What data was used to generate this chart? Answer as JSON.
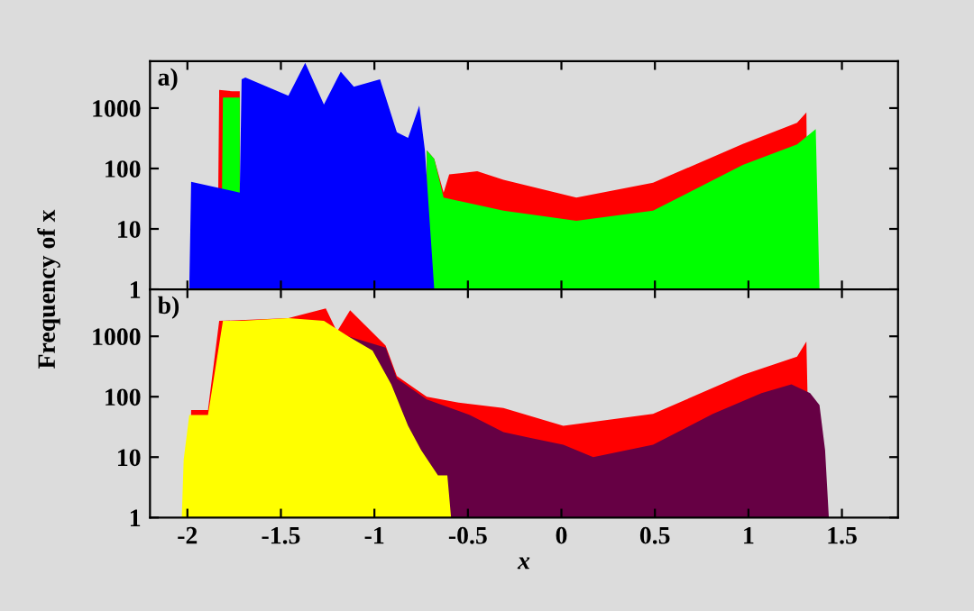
{
  "chart_data": [
    {
      "type": "area",
      "title": "a)",
      "ylabel": "Frequency of x",
      "log": "y",
      "xlim": [
        -2.2,
        1.8
      ],
      "ylim": [
        1,
        6000
      ],
      "xticks": [
        -2,
        -1.5,
        -1,
        -0.5,
        0,
        0.5,
        1,
        1.5
      ],
      "yticks": [
        1,
        10,
        100,
        1000
      ],
      "tick_labels": "y",
      "grid": false,
      "legend": false,
      "series": [
        {
          "color": "#ff0000",
          "x": [
            -1.84,
            -1.83,
            -1.76,
            -1.72,
            -1.2,
            -0.72,
            -0.68,
            -0.63,
            -0.6,
            -0.45,
            -0.31,
            0.08,
            0.49,
            0.97,
            1.26,
            1.31,
            1.32
          ],
          "values": [
            1,
            2000,
            1900,
            1900,
            null,
            200,
            145,
            40,
            80,
            90,
            65,
            33,
            58,
            255,
            570,
            850,
            1
          ]
        },
        {
          "color": "#00ff00",
          "x": [
            -1.82,
            -1.81,
            -1.72,
            -1.2,
            -0.72,
            -0.68,
            -0.63,
            -0.31,
            0.08,
            0.49,
            0.97,
            1.26,
            1.36,
            1.38
          ],
          "values": [
            1,
            1500,
            1500,
            null,
            200,
            145,
            33,
            20,
            13.6,
            20,
            115,
            250,
            450,
            1
          ]
        },
        {
          "color": "#0000ff",
          "x": [
            -1.99,
            -1.98,
            -1.72,
            -1.71,
            -1.69,
            -1.46,
            -1.37,
            -1.27,
            -1.18,
            -1.11,
            -0.97,
            -0.88,
            -0.82,
            -0.76,
            -0.73,
            -0.68
          ],
          "values": [
            1,
            60,
            40,
            3000,
            3200,
            1600,
            5600,
            1150,
            4000,
            2250,
            3000,
            400,
            320,
            1100,
            200,
            1
          ]
        }
      ]
    },
    {
      "type": "area",
      "title": "b)",
      "xlabel": "x",
      "log": "y",
      "xlim": [
        -2.2,
        1.8
      ],
      "ylim": [
        1,
        6000
      ],
      "xticks": [
        -2,
        -1.5,
        -1,
        -0.5,
        0,
        0.5,
        1,
        1.5
      ],
      "yticks": [
        1,
        10,
        100,
        1000
      ],
      "grid": false,
      "legend": false,
      "series": [
        {
          "color": "#ff0000",
          "x": [
            -1.99,
            -1.98,
            -1.89,
            -1.83,
            -1.46,
            -1.26,
            -1.2,
            -1.13,
            -0.94,
            -0.88,
            -0.72,
            -0.55,
            -0.31,
            0.01,
            0.49,
            0.97,
            1.26,
            1.31,
            1.33
          ],
          "values": [
            1,
            60,
            60,
            1800,
            2000,
            2900,
            1200,
            2700,
            700,
            220,
            100,
            80,
            65,
            33,
            52,
            230,
            460,
            820,
            1
          ]
        },
        {
          "color": "#660044",
          "x": [
            -1.2,
            -1.14,
            -0.94,
            -0.88,
            -0.72,
            -0.49,
            -0.31,
            -0.17,
            0.01,
            0.17,
            0.49,
            0.81,
            1.07,
            1.23,
            1.33,
            1.38,
            1.41,
            1.43
          ],
          "values": [
            1,
            1000,
            650,
            200,
            90,
            50,
            26,
            21,
            16,
            10,
            16,
            52,
            115,
            160,
            115,
            73,
            13,
            1
          ]
        },
        {
          "color": "#ffff00",
          "x": [
            -2.03,
            -2.02,
            -1.99,
            -1.89,
            -1.81,
            -1.71,
            -1.46,
            -1.27,
            -1.14,
            -1.01,
            -0.91,
            -0.82,
            -0.75,
            -0.66,
            -0.61,
            -0.59
          ],
          "values": [
            1,
            9,
            50,
            50,
            1800,
            1800,
            2000,
            1800,
            1000,
            580,
            160,
            33,
            13,
            5,
            5,
            1
          ]
        }
      ]
    }
  ]
}
